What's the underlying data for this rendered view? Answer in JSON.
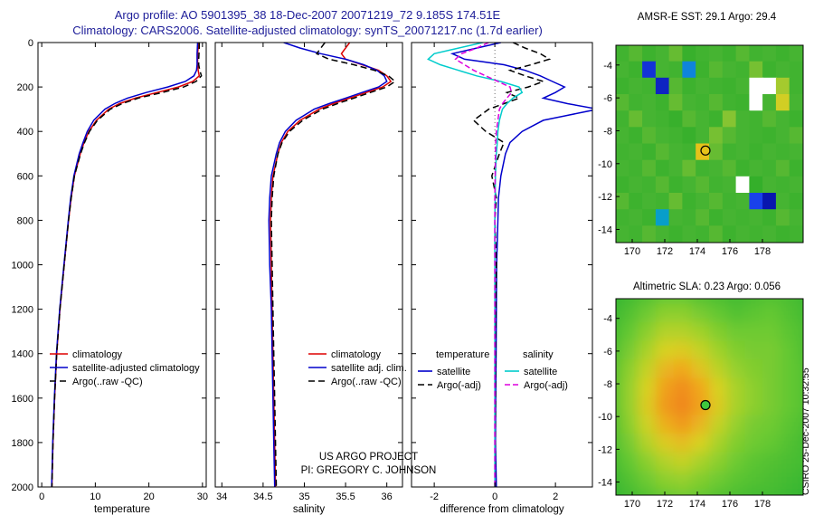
{
  "title": {
    "line1": "Argo profile: AO 5901395_38 18-Dec-2007 20071219_72 9.185S 174.51E",
    "line2": "Climatology: CARS2006. Satellite-adjusted climatology: synTS_20071217.nc (1.7d earlier)"
  },
  "credits": {
    "line1": "US ARGO PROJECT",
    "line2": "PI: GREGORY C. JOHNSON"
  },
  "watermark": "CSIRO 25-Dec-2007 10:32:55",
  "chart_data": [
    {
      "id": "temperature",
      "type": "line",
      "xlabel": "temperature",
      "xlim": [
        -0.7,
        30.7
      ],
      "ylim": [
        0,
        2000
      ],
      "xticks": [
        0,
        10,
        20,
        30
      ],
      "yticks": [
        0,
        200,
        400,
        600,
        800,
        1000,
        1200,
        1400,
        1600,
        1800,
        2000
      ],
      "depths": [
        0,
        25,
        50,
        75,
        100,
        125,
        150,
        175,
        200,
        225,
        250,
        275,
        300,
        350,
        400,
        450,
        500,
        600,
        700,
        800,
        1000,
        1200,
        1400,
        1600,
        1800,
        2000
      ],
      "series": [
        {
          "name": "climatology",
          "legend": "climatology",
          "color": "#dd0000",
          "dash": null,
          "values": [
            29.2,
            29.2,
            29.1,
            29.1,
            29.1,
            29.2,
            29.4,
            28.2,
            25.5,
            21.5,
            17.5,
            14.5,
            12.5,
            10.2,
            8.8,
            7.9,
            7.2,
            6.1,
            5.5,
            5.0,
            4.2,
            3.4,
            2.8,
            2.4,
            2.1,
            1.9
          ]
        },
        {
          "name": "satellite-adjusted climatology",
          "legend": "satellite-adjusted climatology",
          "color": "#0000cc",
          "dash": null,
          "values": [
            29.1,
            29.05,
            29.0,
            29.0,
            29.0,
            28.9,
            28.4,
            26.8,
            23.5,
            19.5,
            16.0,
            13.6,
            11.8,
            9.7,
            8.5,
            7.7,
            7.0,
            6.0,
            5.4,
            4.95,
            4.15,
            3.35,
            2.75,
            2.35,
            2.05,
            1.85
          ]
        },
        {
          "name": "Argo raw temperature",
          "legend": "Argo(..raw -QC)",
          "color": "#000000",
          "dash": "7 4",
          "values": [
            29.4,
            29.4,
            29.35,
            29.3,
            29.3,
            29.5,
            29.8,
            28.8,
            26.5,
            22.5,
            18.0,
            15.0,
            12.8,
            10.4,
            8.9,
            8.0,
            7.25,
            6.1,
            5.5,
            5.0,
            4.2,
            3.4,
            2.8,
            2.4,
            2.1,
            1.9
          ]
        }
      ]
    },
    {
      "id": "salinity",
      "type": "line",
      "xlabel": "salinity",
      "xlim": [
        33.92,
        36.19
      ],
      "ylim": [
        0,
        2000
      ],
      "xticks": [
        34,
        34.5,
        35,
        35.5,
        36
      ],
      "yticks": [
        0,
        200,
        400,
        600,
        800,
        1000,
        1200,
        1400,
        1600,
        1800,
        2000
      ],
      "depths": [
        0,
        25,
        50,
        75,
        100,
        125,
        150,
        175,
        200,
        225,
        250,
        275,
        300,
        350,
        400,
        450,
        500,
        600,
        700,
        800,
        1000,
        1200,
        1400,
        1600,
        1800,
        2000
      ],
      "series": [
        {
          "name": "climatology salinity",
          "legend": "climatology",
          "color": "#dd0000",
          "dash": null,
          "values": [
            35.55,
            35.5,
            35.45,
            35.5,
            35.7,
            35.9,
            36.0,
            36.05,
            35.95,
            35.75,
            35.55,
            35.35,
            35.18,
            34.95,
            34.8,
            34.72,
            34.68,
            34.62,
            34.6,
            34.59,
            34.6,
            34.61,
            34.62,
            34.63,
            34.64,
            34.65
          ]
        },
        {
          "name": "satellite adjusted climatology salinity",
          "legend": "satellite adj. clim.",
          "color": "#0000cc",
          "dash": null,
          "values": [
            34.75,
            34.95,
            35.2,
            35.5,
            35.72,
            35.88,
            35.97,
            36.0,
            35.9,
            35.7,
            35.5,
            35.3,
            35.12,
            34.9,
            34.77,
            34.7,
            34.66,
            34.6,
            34.58,
            34.57,
            34.58,
            34.6,
            34.61,
            34.62,
            34.63,
            34.64
          ]
        },
        {
          "name": "Argo raw salinity",
          "legend": "Argo(..raw -QC)",
          "color": "#000000",
          "dash": "7 4",
          "values": [
            35.25,
            35.2,
            35.15,
            35.3,
            35.6,
            35.85,
            36.02,
            36.1,
            36.0,
            35.8,
            35.6,
            35.4,
            35.22,
            34.98,
            34.82,
            34.73,
            34.68,
            34.63,
            34.61,
            34.6,
            34.61,
            34.62,
            34.63,
            34.64,
            34.65,
            34.66
          ]
        }
      ]
    },
    {
      "id": "difference",
      "type": "line",
      "xlabel": "difference from climatology",
      "xlim": [
        -2.75,
        3.22
      ],
      "ylim": [
        0,
        2000
      ],
      "xticks": [
        -2,
        0,
        2
      ],
      "yticks": [
        0,
        200,
        400,
        600,
        800,
        1000,
        1200,
        1400,
        1600,
        1800,
        2000
      ],
      "zero_line": true,
      "depths": [
        0,
        25,
        50,
        75,
        100,
        125,
        150,
        175,
        200,
        225,
        250,
        275,
        300,
        350,
        400,
        450,
        500,
        600,
        700,
        800,
        1000,
        1200,
        1400,
        1600,
        1800,
        2000
      ],
      "series": [
        {
          "name": "temperature satellite difference",
          "legend": "satellite",
          "color": "#0000cc",
          "dash": null,
          "values": [
            0.2,
            -0.6,
            -1.4,
            -1.0,
            0.3,
            1.0,
            1.5,
            1.9,
            2.3,
            2.0,
            1.6,
            2.4,
            3.4,
            1.6,
            0.9,
            0.5,
            0.35,
            0.2,
            0.12,
            0.1,
            0.06,
            0.05,
            0.04,
            0.03,
            0.02,
            0.05
          ]
        },
        {
          "name": "temperature Argo adjusted difference",
          "legend": "Argo(-adj)",
          "color": "#000000",
          "dash": "7 4",
          "values": [
            0.6,
            1.0,
            1.5,
            1.8,
            1.2,
            0.5,
            1.0,
            1.6,
            1.1,
            0.4,
            0.8,
            0.3,
            -0.2,
            -0.7,
            -0.3,
            0.3,
            0.15,
            -0.1,
            0.05,
            0.0,
            0.05,
            0.03,
            0.02,
            0.02,
            0.01,
            0.01
          ]
        },
        {
          "name": "salinity satellite difference",
          "legend": "satellite",
          "color": "#00cccc",
          "dash": null,
          "values": [
            -0.4,
            -1.2,
            -2.0,
            -2.2,
            -1.8,
            -1.2,
            -0.6,
            0.2,
            0.8,
            0.9,
            0.6,
            0.4,
            0.25,
            0.15,
            0.1,
            0.08,
            0.05,
            0.02,
            0.01,
            0.0,
            0.0,
            0.0,
            0.0,
            0.0,
            0.0,
            0.0
          ]
        },
        {
          "name": "salinity Argo adjusted difference",
          "legend": "Argo(-adj)",
          "color": "#dd00dd",
          "dash": "6 3",
          "values": [
            -0.2,
            -0.6,
            -1.1,
            -1.3,
            -1.0,
            -0.7,
            -0.3,
            0.1,
            0.5,
            0.55,
            0.4,
            0.25,
            0.15,
            0.1,
            0.05,
            0.03,
            0.02,
            0.01,
            0.0,
            0.0,
            0.0,
            0.0,
            0.0,
            0.0,
            0.0,
            0.0
          ]
        }
      ],
      "legend_groups": [
        {
          "title": "temperature",
          "series": [
            0,
            1
          ]
        },
        {
          "title": "salinity",
          "series": [
            2,
            3
          ]
        }
      ]
    },
    {
      "id": "sst_map",
      "type": "heatmap",
      "title": "AMSR-E SST: 29.1 Argo: 29.4",
      "lon_range": [
        169,
        180.5
      ],
      "lat_range": [
        -2.8,
        -14.8
      ],
      "xticks": [
        170,
        172,
        174,
        176,
        178
      ],
      "yticks": [
        -4,
        -6,
        -8,
        -10,
        -12,
        -14
      ],
      "missing_color": "#ffffff",
      "marker": {
        "lon": 174.5,
        "lat": -9.2,
        "fill": "none"
      },
      "colormap": [
        [
          25.5,
          "#000090"
        ],
        [
          26.6,
          "#1e50ff"
        ],
        [
          27.4,
          "#00b8b8"
        ],
        [
          28.2,
          "#22aa22"
        ],
        [
          29.0,
          "#46b432"
        ],
        [
          29.5,
          "#96c832"
        ],
        [
          30.0,
          "#e0d020"
        ],
        [
          30.5,
          "#ff8c00"
        ]
      ],
      "grid": [
        [
          28.9,
          29.1,
          28.8,
          29.0,
          29.2,
          28.7,
          28.9,
          29.0,
          28.8,
          29.1,
          28.9,
          29.0,
          28.8,
          29.0
        ],
        [
          29.0,
          28.8,
          26.2,
          29.0,
          28.9,
          27.0,
          28.8,
          29.1,
          29.0,
          28.9,
          29.3,
          28.8,
          29.0,
          28.9
        ],
        [
          28.8,
          29.0,
          28.9,
          26.0,
          29.1,
          28.8,
          29.0,
          28.9,
          28.8,
          29.0,
          null,
          null,
          29.6,
          28.9
        ],
        [
          29.1,
          28.9,
          29.0,
          28.8,
          29.2,
          29.0,
          28.9,
          29.1,
          28.9,
          28.8,
          null,
          29.0,
          29.9,
          29.0
        ],
        [
          28.9,
          29.2,
          29.0,
          28.9,
          28.7,
          29.1,
          29.0,
          28.8,
          29.4,
          29.0,
          28.9,
          29.1,
          29.0,
          28.8
        ],
        [
          29.0,
          28.8,
          29.1,
          29.0,
          28.9,
          28.7,
          29.0,
          29.3,
          29.1,
          29.0,
          28.9,
          28.8,
          29.0,
          29.1
        ],
        [
          28.9,
          29.0,
          28.8,
          29.1,
          29.0,
          28.9,
          30.1,
          29.2,
          28.9,
          29.0,
          28.8,
          29.0,
          28.9,
          29.0
        ],
        [
          29.0,
          28.9,
          29.1,
          28.8,
          29.0,
          29.2,
          28.9,
          29.0,
          29.1,
          28.8,
          29.0,
          28.9,
          29.1,
          28.8
        ],
        [
          28.8,
          29.0,
          28.9,
          29.1,
          28.8,
          29.0,
          29.1,
          28.9,
          29.0,
          null,
          28.6,
          29.0,
          28.9,
          29.0
        ],
        [
          29.1,
          28.8,
          29.0,
          28.9,
          29.2,
          28.8,
          29.0,
          29.1,
          28.9,
          29.0,
          26.4,
          25.8,
          29.0,
          28.8
        ],
        [
          28.9,
          29.0,
          28.8,
          27.2,
          29.0,
          28.9,
          29.1,
          28.8,
          29.0,
          28.9,
          29.0,
          28.8,
          29.1,
          29.0
        ],
        [
          29.0,
          28.9,
          29.1,
          29.0,
          28.8,
          29.0,
          28.9,
          29.1,
          28.8,
          29.0,
          28.9,
          29.0,
          28.8,
          28.9
        ]
      ]
    },
    {
      "id": "sla_map",
      "type": "heatmap",
      "title": "Altimetric SLA: 0.23 Argo: 0.056",
      "lon_range": [
        169,
        180.5
      ],
      "lat_range": [
        -2.8,
        -14.8
      ],
      "xticks": [
        170,
        172,
        174,
        176,
        178
      ],
      "yticks": [
        -4,
        -6,
        -8,
        -10,
        -12,
        -14
      ],
      "missing_color": "#ffffff",
      "marker": {
        "lon": 174.5,
        "lat": -9.3,
        "fill": "#3ec83e"
      },
      "colormap": [
        [
          -0.05,
          "#1e9632"
        ],
        [
          0.02,
          "#32b432"
        ],
        [
          0.08,
          "#64c832"
        ],
        [
          0.14,
          "#a0d22c"
        ],
        [
          0.2,
          "#d8d224"
        ],
        [
          0.26,
          "#f0a81e"
        ],
        [
          0.33,
          "#f07818"
        ]
      ],
      "grid": [
        [
          0.02,
          0.04,
          0.06,
          0.08,
          0.08,
          0.06,
          0.05,
          0.04,
          0.05,
          0.06,
          0.05,
          0.03
        ],
        [
          0.03,
          0.06,
          0.09,
          0.12,
          0.12,
          0.1,
          0.08,
          0.06,
          0.07,
          0.08,
          0.06,
          0.04
        ],
        [
          0.04,
          0.08,
          0.12,
          0.16,
          0.16,
          0.14,
          0.11,
          0.09,
          0.09,
          0.09,
          0.07,
          0.05
        ],
        [
          0.05,
          0.1,
          0.15,
          0.2,
          0.21,
          0.18,
          0.14,
          0.11,
          0.1,
          0.1,
          0.08,
          0.05
        ],
        [
          0.06,
          0.12,
          0.18,
          0.24,
          0.26,
          0.22,
          0.17,
          0.13,
          0.11,
          0.1,
          0.08,
          0.06
        ],
        [
          0.06,
          0.13,
          0.2,
          0.27,
          0.3,
          0.26,
          0.2,
          0.15,
          0.12,
          0.1,
          0.08,
          0.06
        ],
        [
          0.06,
          0.13,
          0.21,
          0.28,
          0.31,
          0.27,
          0.21,
          0.15,
          0.12,
          0.1,
          0.08,
          0.06
        ],
        [
          0.05,
          0.12,
          0.19,
          0.25,
          0.28,
          0.24,
          0.18,
          0.13,
          0.1,
          0.09,
          0.07,
          0.05
        ],
        [
          0.05,
          0.1,
          0.16,
          0.21,
          0.23,
          0.2,
          0.15,
          0.11,
          0.09,
          0.08,
          0.06,
          0.04
        ],
        [
          0.04,
          0.08,
          0.12,
          0.16,
          0.18,
          0.15,
          0.12,
          0.09,
          0.07,
          0.06,
          0.05,
          0.04
        ],
        [
          0.03,
          0.06,
          0.09,
          0.12,
          0.13,
          0.11,
          0.09,
          0.07,
          0.06,
          0.05,
          0.04,
          0.03
        ],
        [
          0.02,
          0.04,
          0.06,
          0.08,
          0.09,
          0.08,
          0.06,
          0.05,
          0.04,
          0.04,
          0.03,
          0.02
        ]
      ]
    }
  ]
}
